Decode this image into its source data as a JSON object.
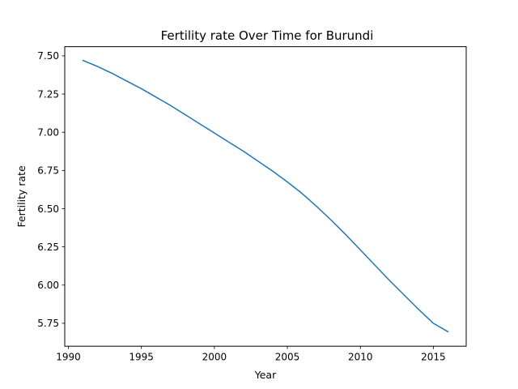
{
  "chart_data": {
    "type": "line",
    "title": "Fertility rate Over Time for Burundi",
    "xlabel": "Year",
    "ylabel": "Fertility rate",
    "xlim": [
      1989.75,
      2017.25
    ],
    "ylim": [
      5.6,
      7.56
    ],
    "x_ticks": [
      1990,
      1995,
      2000,
      2005,
      2010,
      2015
    ],
    "x_tick_labels": [
      "1990",
      "1995",
      "2000",
      "2005",
      "2010",
      "2015"
    ],
    "y_ticks": [
      5.75,
      6.0,
      6.25,
      6.5,
      6.75,
      7.0,
      7.25,
      7.5
    ],
    "y_tick_labels": [
      "5.75",
      "6.00",
      "6.25",
      "6.50",
      "6.75",
      "7.00",
      "7.25",
      "7.50"
    ],
    "grid": false,
    "series": [
      {
        "color": "#1f77b4",
        "x": [
          1991,
          1992,
          1993,
          1994,
          1995,
          1996,
          1997,
          1998,
          1999,
          2000,
          2001,
          2002,
          2003,
          2004,
          2005,
          2006,
          2007,
          2008,
          2009,
          2010,
          2011,
          2012,
          2013,
          2014,
          2015,
          2016
        ],
        "y": [
          7.47,
          7.43,
          7.385,
          7.335,
          7.285,
          7.23,
          7.175,
          7.115,
          7.055,
          6.995,
          6.935,
          6.875,
          6.81,
          6.745,
          6.675,
          6.6,
          6.515,
          6.425,
          6.33,
          6.23,
          6.13,
          6.03,
          5.935,
          5.84,
          5.75,
          5.695
        ]
      }
    ]
  }
}
